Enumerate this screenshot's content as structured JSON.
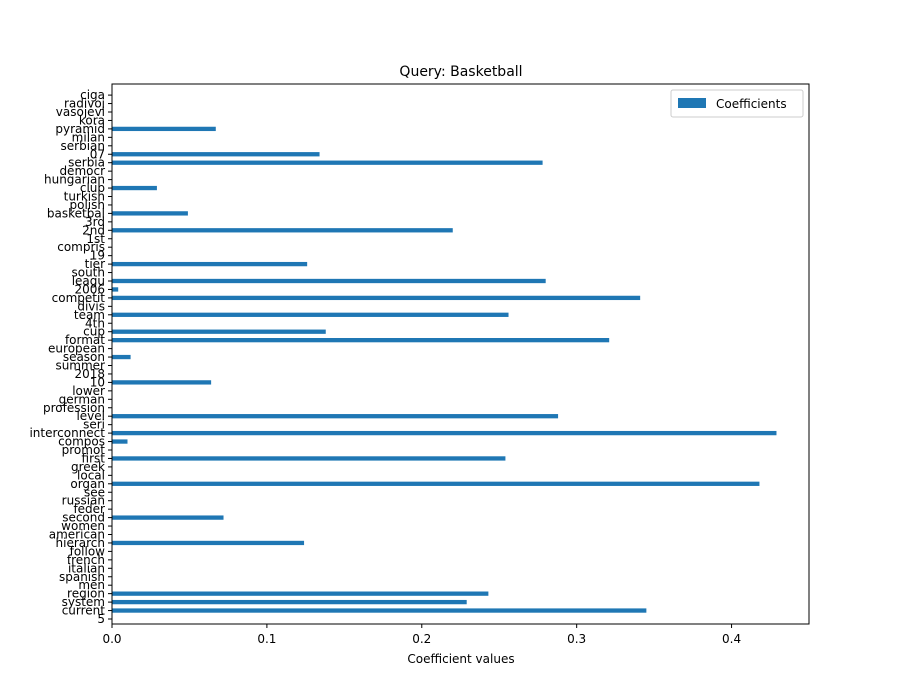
{
  "chart_data": {
    "type": "bar",
    "orientation": "horizontal",
    "title": "Query: Basketball",
    "xlabel": "Coefficient values",
    "ylabel": "",
    "xlim": [
      0,
      0.45
    ],
    "xticks": [
      0.0,
      0.1,
      0.2,
      0.3,
      0.4
    ],
    "xtick_labels": [
      "0.0",
      "0.1",
      "0.2",
      "0.3",
      "0.4"
    ],
    "grid": false,
    "legend": {
      "position": "top-right",
      "entries": [
        "Coefficients"
      ]
    },
    "bar_color": "#1f77b4",
    "categories": [
      "5",
      "current",
      "system",
      "region",
      "men",
      "spanish",
      "italian",
      "french",
      "follow",
      "hierarch",
      "american",
      "women",
      "second",
      "feder",
      "russian",
      "see",
      "organ",
      "local",
      "greek",
      "first",
      "promot",
      "compos",
      "interconnect",
      "seri",
      "level",
      "profession",
      "german",
      "lower",
      "10",
      "2018",
      "summer",
      "season",
      "european",
      "format",
      "cup",
      "4th",
      "team",
      "divis",
      "competit",
      "2006",
      "leagu",
      "south",
      "tier",
      "19",
      "compris",
      "1st",
      "2nd",
      "3rd",
      "basketbal",
      "polish",
      "turkish",
      "club",
      "hungarian",
      "democr",
      "serbia",
      "07",
      "serbian",
      "milan",
      "pyramid",
      "kora",
      "vasojevi",
      "radivoj",
      "ciga"
    ],
    "values": [
      0.0,
      0.345,
      0.229,
      0.243,
      0.0,
      0.0,
      0.0,
      0.0,
      0.0,
      0.124,
      0.0,
      0.0,
      0.072,
      0.0,
      0.0,
      0.0,
      0.418,
      0.0,
      0.0,
      0.254,
      0.0,
      0.01,
      0.429,
      0.0,
      0.288,
      0.0,
      0.0,
      0.0,
      0.064,
      0.0,
      0.0,
      0.012,
      0.0,
      0.321,
      0.138,
      0.0,
      0.256,
      0.0,
      0.341,
      0.004,
      0.28,
      0.0,
      0.126,
      0.0,
      0.0,
      0.0,
      0.22,
      0.0,
      0.049,
      0.0,
      0.0,
      0.029,
      0.0,
      0.0,
      0.278,
      0.134,
      0.0,
      0.0,
      0.067,
      0.0,
      0.0,
      0.0,
      0.0
    ]
  }
}
